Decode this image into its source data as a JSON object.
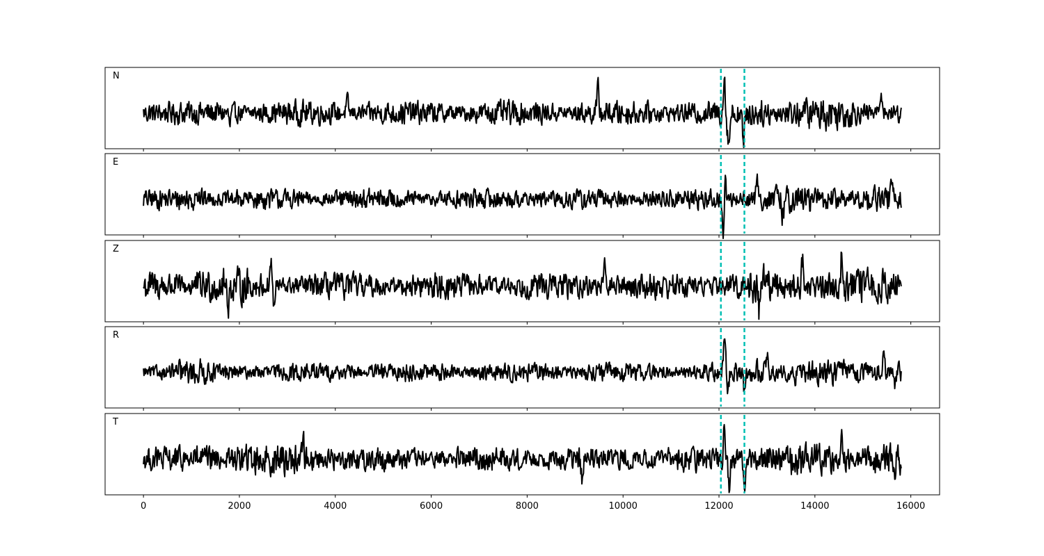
{
  "chart_data": {
    "type": "line",
    "layout": "stacked-panels",
    "xlim": [
      -800,
      16600
    ],
    "x_ticks": [
      0,
      2000,
      4000,
      6000,
      8000,
      10000,
      12000,
      14000,
      16000
    ],
    "x_tick_labels": [
      "0",
      "2000",
      "4000",
      "6000",
      "8000",
      "10000",
      "12000",
      "14000",
      "16000"
    ],
    "x_samples": 15800,
    "markers": {
      "color": "#00BFB3",
      "style": "dashed",
      "x": [
        12040,
        12530
      ]
    },
    "trace_color": "#000000",
    "panels": [
      {
        "label": "N",
        "amplitude": 0.42,
        "features": [
          {
            "x": 12110,
            "value": 1.0,
            "width": 25
          },
          {
            "x": 12200,
            "value": -0.8,
            "width": 35
          },
          {
            "x": 12510,
            "value": -0.95,
            "width": 25
          },
          {
            "x": 9480,
            "value": 0.6,
            "width": 30
          },
          {
            "x": 15380,
            "value": 0.55,
            "width": 35
          },
          {
            "x": 1800,
            "value": -0.35,
            "width": 25
          },
          {
            "x": 4250,
            "value": 0.3,
            "width": 30
          }
        ],
        "burst_regions": [
          [
            0,
            200
          ],
          [
            12600,
            14800
          ]
        ]
      },
      {
        "label": "E",
        "amplitude": 0.35,
        "features": [
          {
            "x": 12090,
            "value": -1.0,
            "width": 28
          },
          {
            "x": 12130,
            "value": 0.55,
            "width": 22
          },
          {
            "x": 12800,
            "value": 0.48,
            "width": 30
          },
          {
            "x": 13330,
            "value": -0.4,
            "width": 30
          },
          {
            "x": 15600,
            "value": 0.48,
            "width": 30
          },
          {
            "x": 1100,
            "value": 0.33,
            "width": 25
          }
        ],
        "burst_regions": [
          [
            700,
            1300
          ],
          [
            12500,
            15600
          ]
        ]
      },
      {
        "label": "Z",
        "amplitude": 0.45,
        "features": [
          {
            "x": 14560,
            "value": 1.0,
            "width": 25
          },
          {
            "x": 2660,
            "value": 0.65,
            "width": 30
          },
          {
            "x": 2720,
            "value": -0.55,
            "width": 30
          },
          {
            "x": 12840,
            "value": -0.65,
            "width": 25
          },
          {
            "x": 12920,
            "value": 0.6,
            "width": 25
          },
          {
            "x": 13740,
            "value": 0.58,
            "width": 30
          },
          {
            "x": 1780,
            "value": -0.5,
            "width": 25
          },
          {
            "x": 9620,
            "value": 0.5,
            "width": 30
          }
        ],
        "burst_regions": [
          [
            0,
            2200
          ],
          [
            12600,
            15700
          ]
        ]
      },
      {
        "label": "R",
        "amplitude": 0.32,
        "features": [
          {
            "x": 12120,
            "value": 1.0,
            "width": 28
          },
          {
            "x": 12190,
            "value": -0.48,
            "width": 30
          },
          {
            "x": 12530,
            "value": -0.55,
            "width": 25
          },
          {
            "x": 13000,
            "value": 0.45,
            "width": 30
          },
          {
            "x": 15430,
            "value": 0.48,
            "width": 30
          },
          {
            "x": 15660,
            "value": -0.43,
            "width": 30
          },
          {
            "x": 13570,
            "value": -0.38,
            "width": 30
          }
        ],
        "burst_regions": [
          [
            700,
            1300
          ],
          [
            12600,
            15800
          ]
        ]
      },
      {
        "label": "T",
        "amplitude": 0.42,
        "features": [
          {
            "x": 12110,
            "value": 1.0,
            "width": 25
          },
          {
            "x": 12210,
            "value": -0.75,
            "width": 30
          },
          {
            "x": 12530,
            "value": -0.8,
            "width": 28
          },
          {
            "x": 9150,
            "value": -0.68,
            "width": 28
          },
          {
            "x": 3330,
            "value": 0.55,
            "width": 25
          },
          {
            "x": 15650,
            "value": -0.55,
            "width": 28
          },
          {
            "x": 14560,
            "value": 0.5,
            "width": 28
          }
        ],
        "burst_regions": [
          [
            1000,
            4000
          ],
          [
            12600,
            15800
          ]
        ]
      }
    ]
  }
}
